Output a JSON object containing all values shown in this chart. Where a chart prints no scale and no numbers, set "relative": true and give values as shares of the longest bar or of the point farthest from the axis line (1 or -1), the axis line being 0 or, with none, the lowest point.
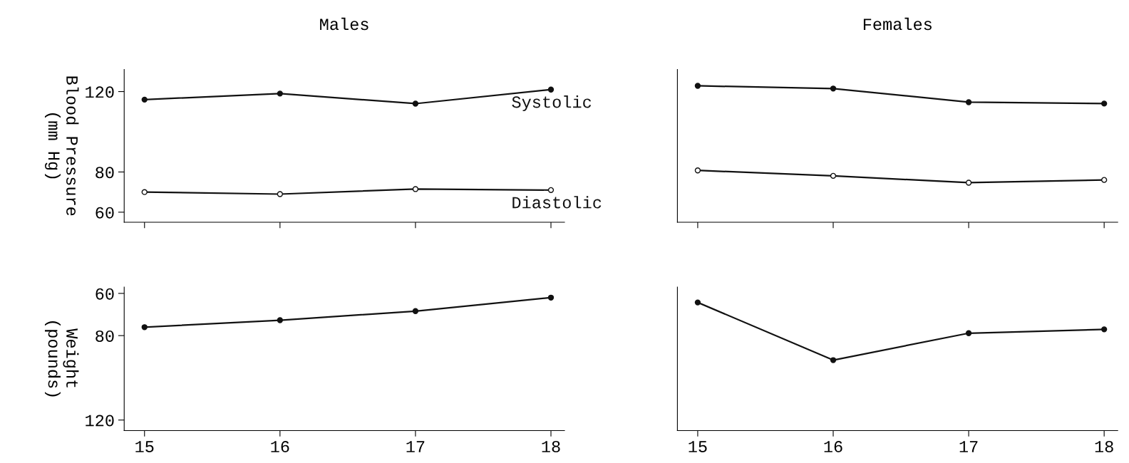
{
  "chart_data": [
    {
      "type": "line",
      "title": "Males",
      "ylabel": "Blood Pressure\n(mm Hg)",
      "categories": [
        "15",
        "16",
        "17",
        "18"
      ],
      "ylim": [
        55,
        131
      ],
      "yticks": [
        60,
        80,
        120
      ],
      "tick_labels": "y",
      "marker": "circle",
      "series": [
        {
          "name": "Systolic",
          "color": "#111111",
          "values": [
            116,
            119,
            114,
            121
          ]
        },
        {
          "name": "Diastolic",
          "color": "#111111",
          "values": [
            70,
            69,
            71.5,
            71
          ]
        }
      ]
    },
    {
      "type": "line",
      "title": "Females",
      "categories": [
        "15",
        "16",
        "17",
        "18"
      ],
      "relative": true,
      "tick_labels": false,
      "marker": "circle",
      "series": [
        {
          "color": "#111111",
          "values": [
            1,
            0.98,
            0.88,
            0.87
          ]
        },
        {
          "color": "#111111",
          "values": [
            0.38,
            0.34,
            0.29,
            0.31
          ]
        }
      ]
    },
    {
      "type": "line",
      "ylabel": "Weight\n(pounds)",
      "categories": [
        "15",
        "16",
        "17",
        "18"
      ],
      "ylim": [
        125,
        57
      ],
      "yticks": [
        60,
        80,
        120
      ],
      "marker": "circle",
      "series": [
        {
          "color": "#111111",
          "values": [
            76,
            72.7,
            68.4,
            62
          ]
        }
      ]
    },
    {
      "type": "line",
      "categories": [
        "15",
        "16",
        "17",
        "18"
      ],
      "relative": true,
      "tick_labels": "x",
      "marker": "circle",
      "series": [
        {
          "color": "#111111",
          "values": [
            1,
            0.55,
            0.76,
            0.79
          ]
        }
      ]
    }
  ]
}
